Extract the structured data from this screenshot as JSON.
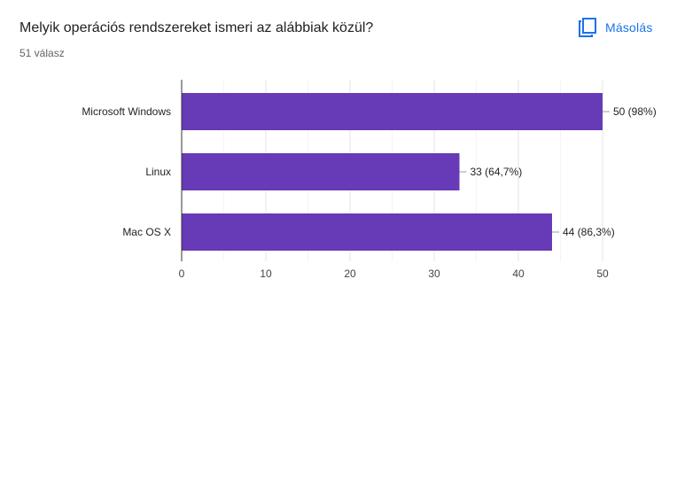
{
  "header": {
    "question_title": "Melyik operációs rendszereket ismeri az alábbiak közül?",
    "response_count": "51 válasz",
    "copy_label": "Másolás"
  },
  "icons": {
    "copy": "copy-icon"
  },
  "colors": {
    "bar": "#673ab7",
    "accent": "#1a73e8"
  },
  "chart_data": {
    "type": "bar",
    "orientation": "horizontal",
    "categories": [
      "Microsoft Windows",
      "Linux",
      "Mac OS X"
    ],
    "values": [
      50,
      33,
      44
    ],
    "data_labels": [
      "50 (98%)",
      "33 (64,7%)",
      "44 (86,3%)"
    ],
    "xlim": [
      0,
      50
    ],
    "xticks": [
      0,
      10,
      20,
      30,
      40,
      50
    ],
    "grid": true,
    "legend": "none"
  }
}
